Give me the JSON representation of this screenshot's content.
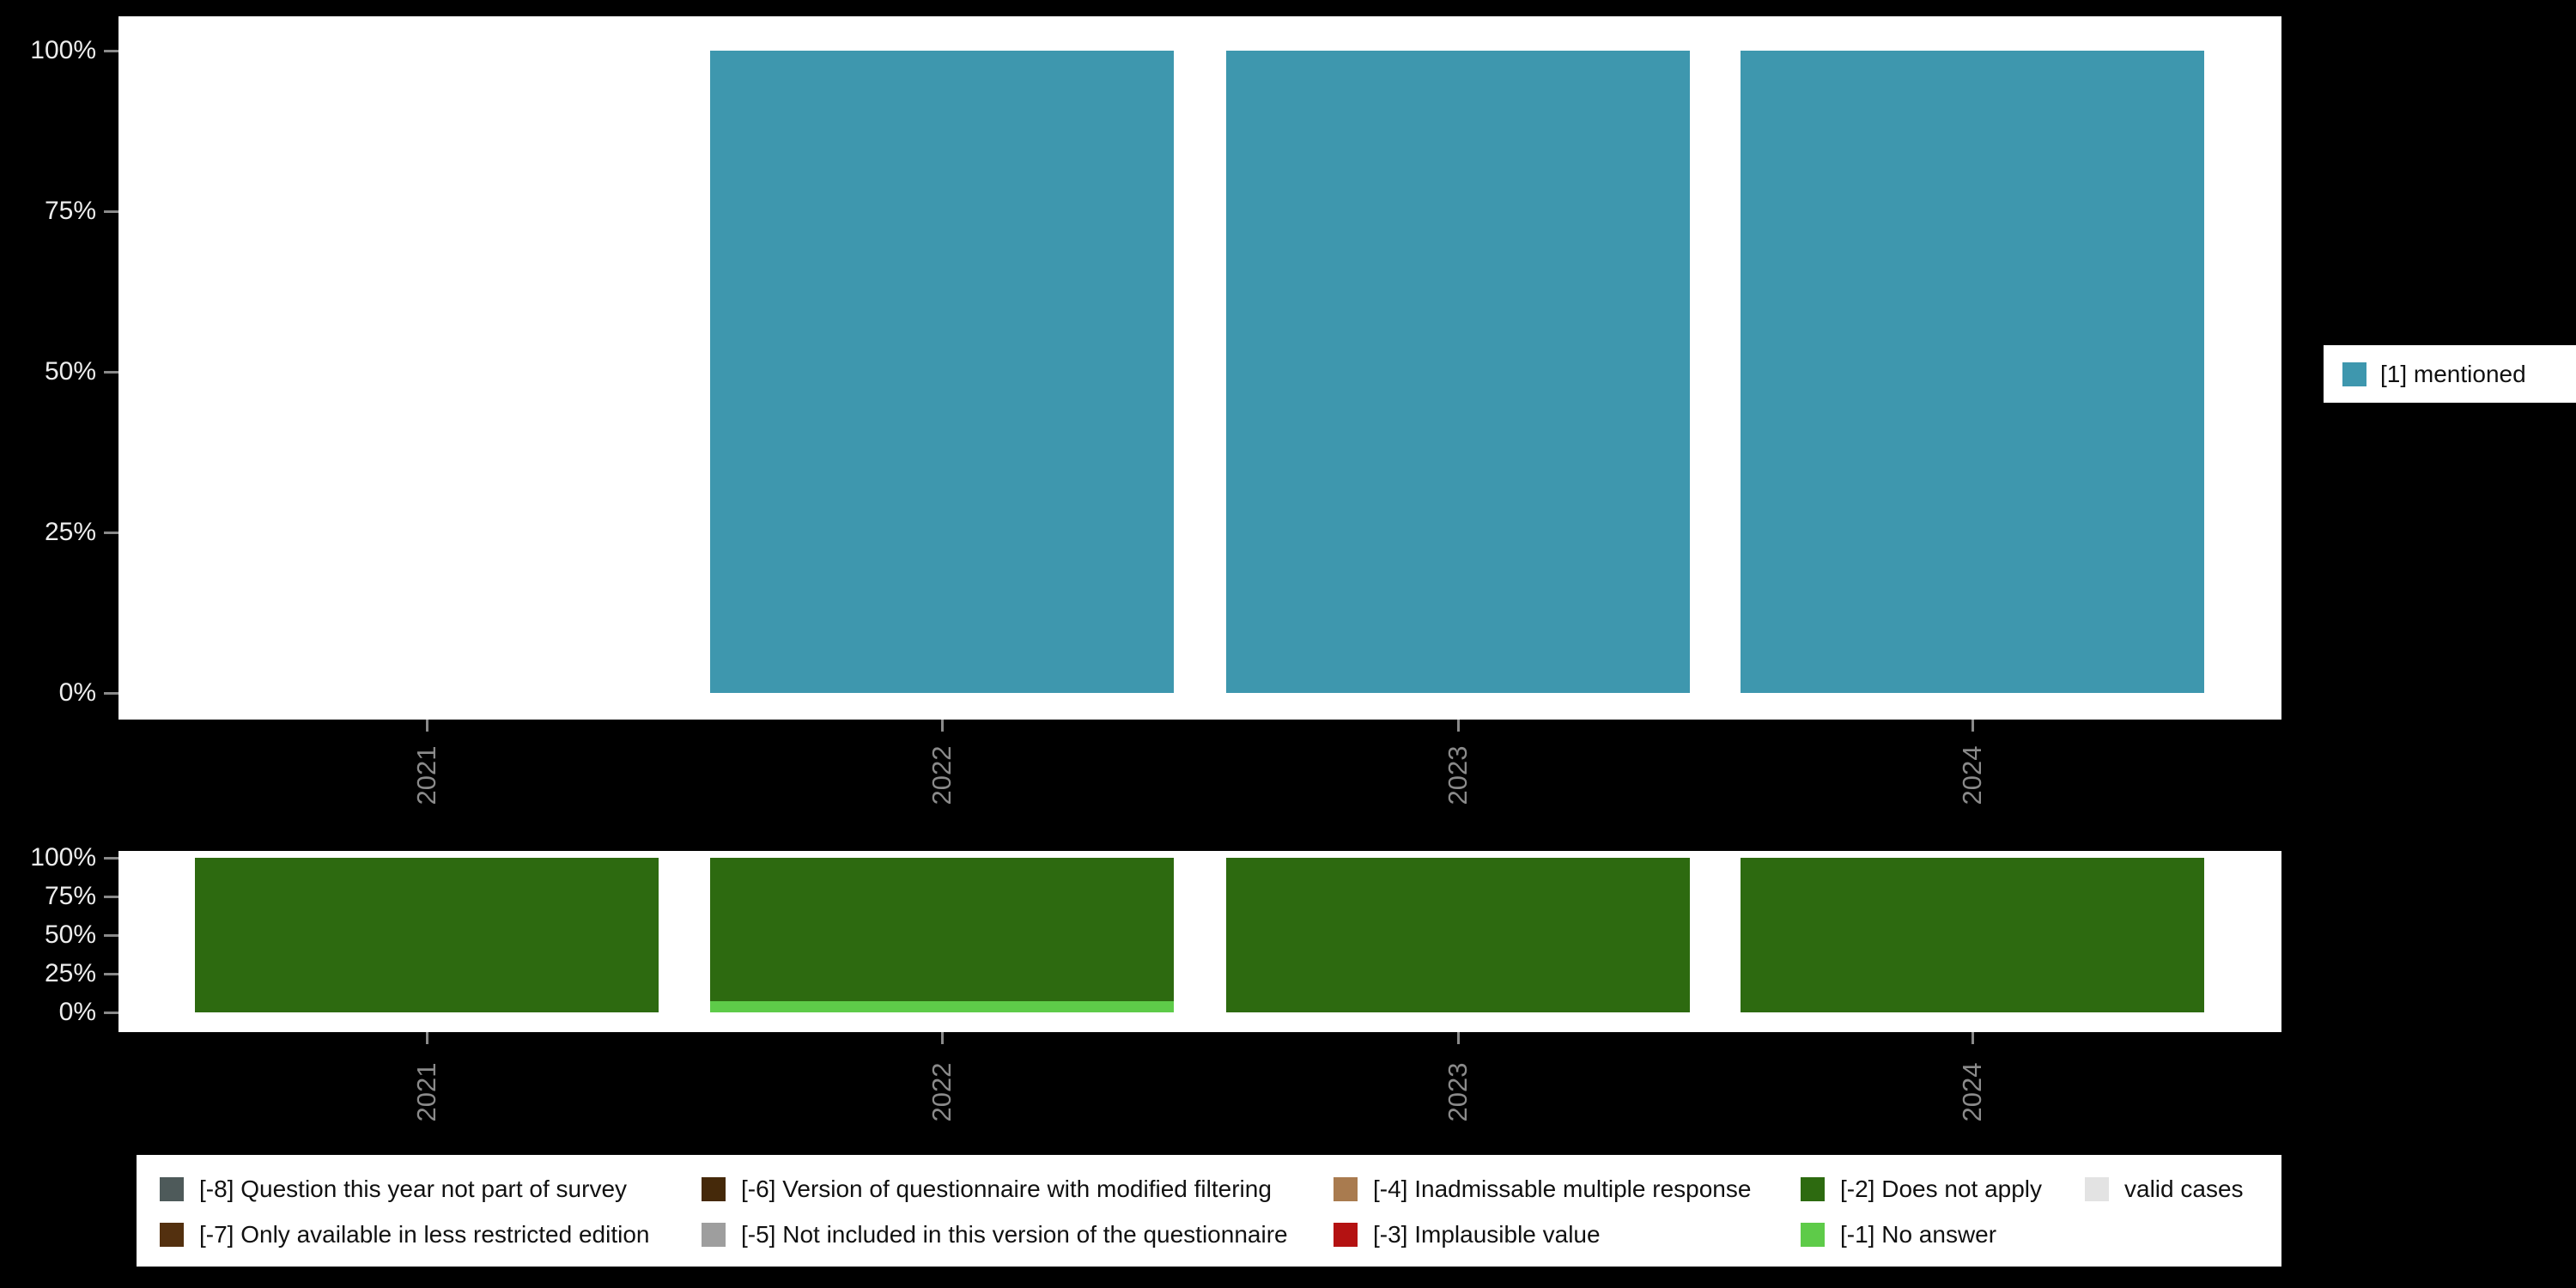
{
  "background": "#000000",
  "panel_color": "#ffffff",
  "axis": {
    "ytick_color": "#ededed",
    "xtick_color": "#8a8a8a",
    "tick_mark_color": "#8a8a8a"
  },
  "chart_data": [
    {
      "type": "bar",
      "stacked": true,
      "title": "",
      "categories": [
        "2021",
        "2022",
        "2023",
        "2024"
      ],
      "series": [
        {
          "name": "[1] mentioned",
          "color": "#3e97ae",
          "values": [
            0,
            100,
            100,
            100
          ]
        }
      ],
      "ylim": [
        0,
        100
      ],
      "yticks": [
        "0%",
        "25%",
        "50%",
        "75%",
        "100%"
      ],
      "grid": false,
      "legend_position": "right"
    },
    {
      "type": "bar",
      "stacked": true,
      "title": "",
      "categories": [
        "2021",
        "2022",
        "2023",
        "2024"
      ],
      "series": [
        {
          "name": "[-1] No answer",
          "color": "#5ecb49",
          "values": [
            0,
            7,
            0,
            0
          ]
        },
        {
          "name": "[-2] Does not apply",
          "color": "#2d6a10",
          "values": [
            100,
            93,
            100,
            100
          ]
        }
      ],
      "ylim": [
        0,
        100
      ],
      "yticks": [
        "0%",
        "25%",
        "50%",
        "75%",
        "100%"
      ],
      "grid": false,
      "legend_position": "bottom"
    }
  ],
  "right_legend": {
    "items": [
      {
        "label": "[1] mentioned",
        "color": "#3e97ae"
      }
    ]
  },
  "bottom_legend": {
    "items": [
      {
        "label": "[-8] Question this year not part of survey",
        "color": "#4e5a5a",
        "row": 0,
        "col": 0
      },
      {
        "label": "[-7] Only available in less restricted edition",
        "color": "#53300f",
        "row": 1,
        "col": 0
      },
      {
        "label": "[-6] Version of questionnaire with modified filtering",
        "color": "#45290a",
        "row": 0,
        "col": 1
      },
      {
        "label": "[-5] Not included in this version of the questionnaire",
        "color": "#9e9e9e",
        "row": 1,
        "col": 1
      },
      {
        "label": "[-4] Inadmissable multiple response",
        "color": "#a97b4f",
        "row": 0,
        "col": 2
      },
      {
        "label": "[-3] Implausible value",
        "color": "#b41212",
        "row": 1,
        "col": 2
      },
      {
        "label": "[-2] Does not apply",
        "color": "#2d6a10",
        "row": 0,
        "col": 3
      },
      {
        "label": "[-1] No answer",
        "color": "#5ecb49",
        "row": 1,
        "col": 3
      },
      {
        "label": "valid cases",
        "color": "#e3e3e3",
        "row": 0,
        "col": 4
      }
    ]
  }
}
